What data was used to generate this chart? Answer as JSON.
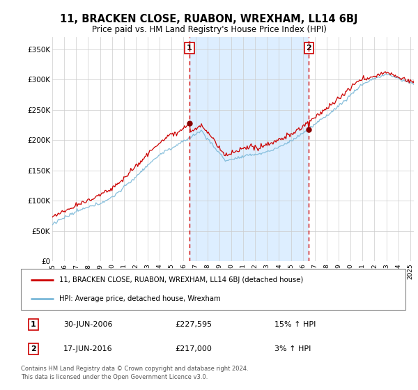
{
  "title": "11, BRACKEN CLOSE, RUABON, WREXHAM, LL14 6BJ",
  "subtitle": "Price paid vs. HM Land Registry's House Price Index (HPI)",
  "hpi_color": "#7ab8d8",
  "price_color": "#cc0000",
  "shade_color": "#ddeeff",
  "bg_plot": "#f5f8ff",
  "grid_color": "#cccccc",
  "ylim": [
    0,
    370000
  ],
  "yticks": [
    0,
    50000,
    100000,
    150000,
    200000,
    250000,
    300000,
    350000
  ],
  "ytick_labels": [
    "£0",
    "£50K",
    "£100K",
    "£150K",
    "£200K",
    "£250K",
    "£300K",
    "£350K"
  ],
  "legend_label_red": "11, BRACKEN CLOSE, RUABON, WREXHAM, LL14 6BJ (detached house)",
  "legend_label_blue": "HPI: Average price, detached house, Wrexham",
  "transaction1_date": "30-JUN-2006",
  "transaction1_price": "£227,595",
  "transaction1_hpi": "15% ↑ HPI",
  "transaction2_date": "17-JUN-2016",
  "transaction2_price": "£217,000",
  "transaction2_hpi": "3% ↑ HPI",
  "footer": "Contains HM Land Registry data © Crown copyright and database right 2024.\nThis data is licensed under the Open Government Licence v3.0.",
  "vline1_x": 2006.5,
  "vline2_x": 2016.5,
  "sale1_y": 227595,
  "sale2_y": 217000,
  "xlim_left": 1995.0,
  "xlim_right": 2025.3
}
